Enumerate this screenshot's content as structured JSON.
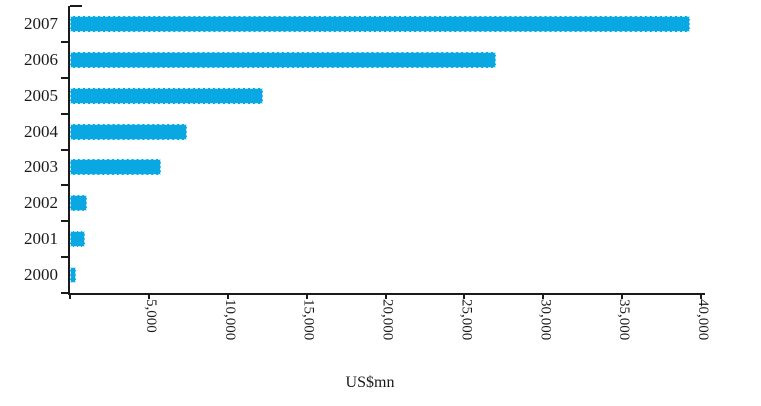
{
  "chart_data": {
    "type": "bar",
    "orientation": "horizontal",
    "title": "",
    "xlabel": "US$mn",
    "ylabel": "",
    "categories": [
      "2007",
      "2006",
      "2005",
      "2004",
      "2003",
      "2002",
      "2001",
      "2000"
    ],
    "values": [
      39300,
      27000,
      12250,
      7400,
      5800,
      1100,
      950,
      400
    ],
    "xlim": [
      0,
      40000
    ],
    "xticks": [
      0,
      5000,
      10000,
      15000,
      20000,
      25000,
      30000,
      35000,
      40000
    ],
    "xtick_labels": [
      "5,000",
      "10,000",
      "15,000",
      "20,000",
      "25,000",
      "30,000",
      "35,000",
      "40,000"
    ],
    "grid": false,
    "legend": "none",
    "tick_label_rotation": "vertical-top-to-bottom",
    "bar_color": "#0AA8E2",
    "axis_color": "#1a1a1a",
    "text_color": "#1a1a1a",
    "background_color": "#ffffff"
  }
}
